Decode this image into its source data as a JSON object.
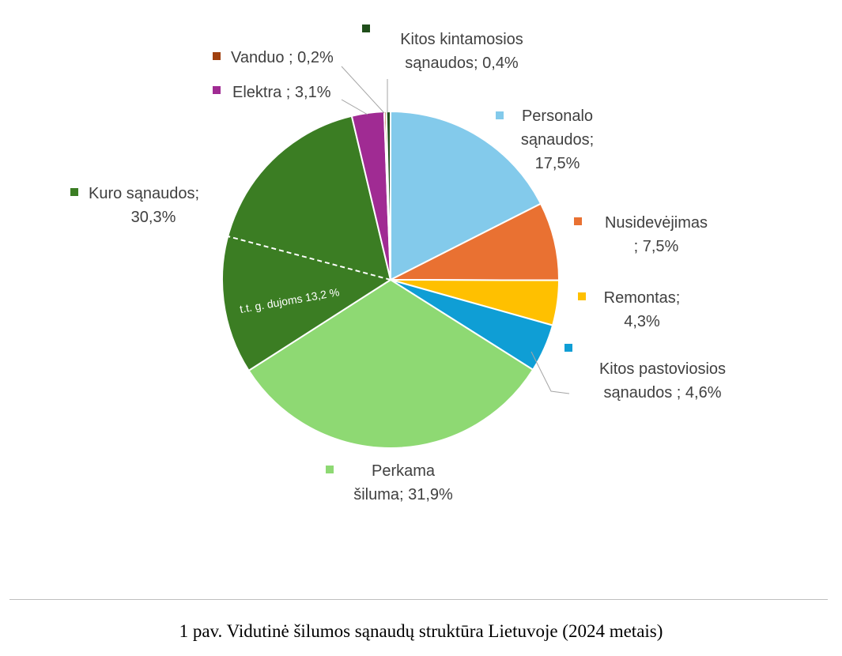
{
  "chart_data": {
    "type": "pie",
    "title": "",
    "slices": [
      {
        "label": "Personalo sąnaudos;",
        "value": 17.5,
        "value_text": "17,5%",
        "color": "#83CAEB"
      },
      {
        "label": "Nusidevėjimas ;",
        "value": 7.5,
        "value_text": "7,5%",
        "color": "#E97132"
      },
      {
        "label": "Remontas;",
        "value": 4.3,
        "value_text": "4,3%",
        "color": "#FFC000"
      },
      {
        "label": "Kitos pastoviosios sąnaudos ;",
        "value": 4.6,
        "value_text": "4,6%",
        "color": "#0F9ED5"
      },
      {
        "label": "Perkama šiluma;",
        "value": 31.9,
        "value_text": "31,9%",
        "color": "#8ED973"
      },
      {
        "label": "Kuro sąnaudos;",
        "value": 30.3,
        "value_text": "30,3%",
        "color": "#3B7D23"
      },
      {
        "label": "Elektra ;",
        "value": 3.1,
        "value_text": "3,1%",
        "color": "#A02B93"
      },
      {
        "label": "Vanduo ;",
        "value": 0.2,
        "value_text": "0,2%",
        "color": "#A0400F"
      },
      {
        "label": "Kitos kintamosios sąnaudos;",
        "value": 0.4,
        "value_text": "0,4%",
        "color": "#1F4E1A"
      }
    ],
    "sub_segment": {
      "parent": "Kuro sąnaudos;",
      "label": "t.t. g. dujoms 13,2 %",
      "value": 13.2
    }
  },
  "caption": "1 pav. Vidutinė šilumos sąnaudų struktūra Lietuvoje (2024 metais)"
}
